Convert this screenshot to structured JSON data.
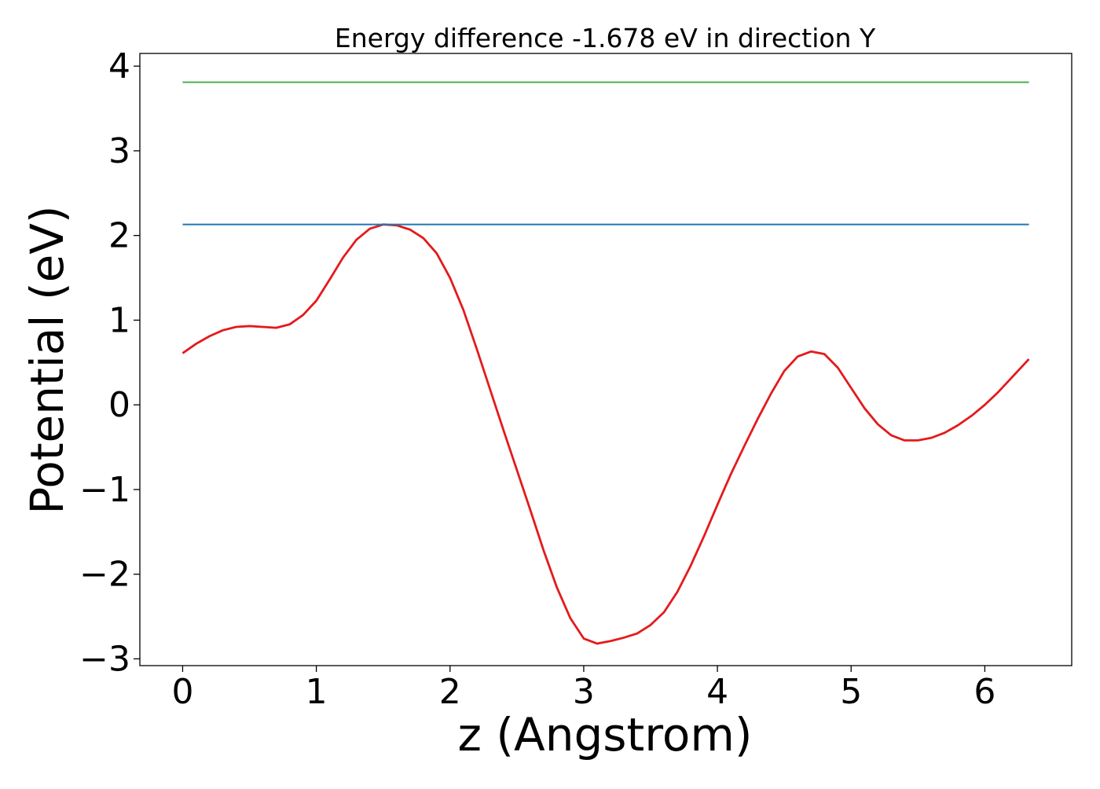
{
  "chart_data": {
    "type": "line",
    "title": "Energy difference -1.678 eV in direction Y",
    "xlabel": "z (Angstrom)",
    "ylabel": "Potential (eV)",
    "xlim": [
      -0.32,
      6.65
    ],
    "ylim": [
      -3.08,
      4.15
    ],
    "xticks": [
      0,
      1,
      2,
      3,
      4,
      5,
      6
    ],
    "yticks": [
      -3,
      -2,
      -1,
      0,
      1,
      2,
      3,
      4
    ],
    "xtick_labels": [
      "0",
      "1",
      "2",
      "3",
      "4",
      "5",
      "6"
    ],
    "ytick_labels": [
      "−3",
      "−2",
      "−1",
      "0",
      "1",
      "2",
      "3",
      "4"
    ],
    "grid": false,
    "colors": {
      "potential": "#e41a1c",
      "upper_level": "#4daf4a",
      "max_level": "#1f77b4"
    },
    "series": [
      {
        "x": [
          0.0,
          0.1,
          0.2,
          0.3,
          0.4,
          0.5,
          0.6,
          0.7,
          0.8,
          0.9,
          1.0,
          1.1,
          1.2,
          1.3,
          1.4,
          1.5,
          1.6,
          1.7,
          1.8,
          1.9,
          2.0,
          2.1,
          2.2,
          2.3,
          2.4,
          2.5,
          2.6,
          2.7,
          2.8,
          2.9,
          3.0,
          3.1,
          3.2,
          3.3,
          3.4,
          3.5,
          3.6,
          3.7,
          3.8,
          3.9,
          4.0,
          4.1,
          4.2,
          4.3,
          4.4,
          4.5,
          4.6,
          4.7,
          4.8,
          4.9,
          5.0,
          5.1,
          5.2,
          5.3,
          5.4,
          5.5,
          5.6,
          5.7,
          5.8,
          5.9,
          6.0,
          6.1,
          6.2,
          6.33
        ],
        "values": [
          0.61,
          0.72,
          0.81,
          0.88,
          0.92,
          0.93,
          0.92,
          0.91,
          0.95,
          1.06,
          1.23,
          1.48,
          1.74,
          1.95,
          2.08,
          2.13,
          2.12,
          2.07,
          1.97,
          1.79,
          1.5,
          1.12,
          0.66,
          0.18,
          -0.3,
          -0.77,
          -1.24,
          -1.72,
          -2.16,
          -2.52,
          -2.76,
          -2.82,
          -2.79,
          -2.75,
          -2.7,
          -2.6,
          -2.45,
          -2.21,
          -1.9,
          -1.55,
          -1.18,
          -0.82,
          -0.49,
          -0.17,
          0.13,
          0.4,
          0.57,
          0.63,
          0.6,
          0.44,
          0.2,
          -0.04,
          -0.23,
          -0.36,
          -0.42,
          -0.42,
          -0.39,
          -0.33,
          -0.24,
          -0.13,
          0.0,
          0.15,
          0.32,
          0.54
        ]
      },
      {
        "x": [
          0.0,
          6.33
        ],
        "values": [
          3.81,
          3.81
        ]
      },
      {
        "x": [
          0.0,
          6.33
        ],
        "values": [
          2.13,
          2.13
        ]
      }
    ]
  }
}
